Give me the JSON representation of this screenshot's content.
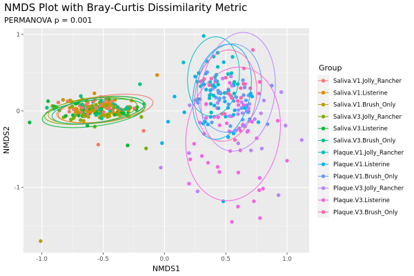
{
  "chart_data": {
    "type": "scatter",
    "title": "NMDS Plot with Bray-Curtis Dissimilarity Metric",
    "subtitle": "PERMANOVA p = 0.001",
    "xlabel": "NMDS1",
    "ylabel": "NMDS2",
    "xlim": [
      -1.15,
      1.18
    ],
    "ylim": [
      -1.85,
      1.08
    ],
    "x_ticks": [
      -1.0,
      -0.5,
      0.0,
      0.5,
      1.0
    ],
    "x_tick_labels": [
      "-1.0",
      "-0.5",
      "0.0",
      "0.5",
      "1.0"
    ],
    "y_ticks": [
      -1,
      0,
      1
    ],
    "y_tick_labels": [
      "-1",
      "0",
      "1"
    ],
    "grid": true,
    "legend": {
      "title": "Group",
      "position": "right"
    },
    "series": [
      {
        "name": "Saliva.V1.Jolly_Rancher",
        "color": "#F8766D",
        "group": "saliva",
        "center": [
          -0.52,
          0.05
        ],
        "spread": [
          0.14,
          0.07
        ],
        "n": 35,
        "ellipse": {
          "cx": -0.48,
          "cy": 0.03,
          "rx": 0.39,
          "ry": 0.17,
          "angle": 8
        }
      },
      {
        "name": "Saliva.V1.Listerine",
        "color": "#DE8C00",
        "group": "saliva",
        "center": [
          -0.5,
          0.04
        ],
        "spread": [
          0.14,
          0.07
        ],
        "n": 35,
        "ellipse": {
          "cx": -0.52,
          "cy": 0.02,
          "rx": 0.36,
          "ry": 0.16,
          "angle": 7
        }
      },
      {
        "name": "Saliva.V1.Brush_Only",
        "color": "#B79F00",
        "group": "saliva",
        "center": [
          -0.56,
          0.02
        ],
        "spread": [
          0.15,
          0.07
        ],
        "n": 35,
        "ellipse": {
          "cx": -0.55,
          "cy": 0.01,
          "rx": 0.4,
          "ry": 0.17,
          "angle": 6
        }
      },
      {
        "name": "Saliva.V3.Jolly_Rancher",
        "color": "#7CAE00",
        "group": "saliva",
        "center": [
          -0.6,
          0.0
        ],
        "spread": [
          0.15,
          0.07
        ],
        "n": 35,
        "ellipse": {
          "cx": -0.6,
          "cy": 0.0,
          "rx": 0.38,
          "ry": 0.16,
          "angle": 7
        }
      },
      {
        "name": "Saliva.V3.Listerine",
        "color": "#00BA38",
        "group": "saliva",
        "center": [
          -0.58,
          0.0
        ],
        "spread": [
          0.15,
          0.07
        ],
        "n": 35,
        "ellipse": {
          "cx": -0.58,
          "cy": -0.03,
          "rx": 0.42,
          "ry": 0.17,
          "angle": 7
        }
      },
      {
        "name": "Saliva.V3.Brush_Only",
        "color": "#00C08B",
        "group": "saliva",
        "center": [
          -0.55,
          0.03
        ],
        "spread": [
          0.14,
          0.07
        ],
        "n": 35,
        "ellipse": {
          "cx": -0.54,
          "cy": 0.01,
          "rx": 0.38,
          "ry": 0.16,
          "angle": 8
        }
      },
      {
        "name": "Plaque.V1.Jolly_Rancher",
        "color": "#00BFC4",
        "group": "plaque",
        "center": [
          0.4,
          0.35
        ],
        "spread": [
          0.13,
          0.2
        ],
        "n": 30,
        "ellipse": {
          "cx": 0.4,
          "cy": 0.45,
          "rx": 0.21,
          "ry": 0.52,
          "angle": -6
        }
      },
      {
        "name": "Plaque.V1.Listerine",
        "color": "#00B4F0",
        "group": "plaque",
        "center": [
          0.48,
          0.1
        ],
        "spread": [
          0.15,
          0.25
        ],
        "n": 30,
        "ellipse": {
          "cx": 0.47,
          "cy": 0.25,
          "rx": 0.23,
          "ry": 0.63,
          "angle": -12
        }
      },
      {
        "name": "Plaque.V1.Brush_Only",
        "color": "#619CFF",
        "group": "plaque",
        "center": [
          0.55,
          0.15
        ],
        "spread": [
          0.15,
          0.22
        ],
        "n": 30,
        "ellipse": {
          "cx": 0.53,
          "cy": 0.3,
          "rx": 0.26,
          "ry": 0.58,
          "angle": -8
        }
      },
      {
        "name": "Plaque.V3.Jolly_Rancher",
        "color": "#B983FF",
        "group": "plaque",
        "center": [
          0.6,
          0.05
        ],
        "spread": [
          0.18,
          0.3
        ],
        "n": 30,
        "ellipse": {
          "cx": 0.6,
          "cy": 0.25,
          "rx": 0.3,
          "ry": 0.78,
          "angle": -8
        }
      },
      {
        "name": "Plaque.V3.Listerine",
        "color": "#F564E3",
        "group": "plaque",
        "center": [
          0.55,
          -0.3
        ],
        "spread": [
          0.17,
          0.35
        ],
        "n": 30,
        "ellipse": {
          "cx": 0.56,
          "cy": -0.3,
          "rx": 0.38,
          "ry": 0.88,
          "angle": -10
        }
      },
      {
        "name": "Plaque.V3.Brush_Only",
        "color": "#FF64B0",
        "group": "plaque",
        "center": [
          0.5,
          0.2
        ],
        "spread": [
          0.15,
          0.22
        ],
        "n": 30,
        "ellipse": {
          "cx": 0.5,
          "cy": 0.2,
          "rx": 0.25,
          "ry": 0.6,
          "angle": -8
        }
      }
    ],
    "outliers": [
      {
        "x": -1.01,
        "y": -1.7,
        "color": "#B79F00"
      },
      {
        "x": -1.1,
        "y": -0.15,
        "color": "#00BA38"
      },
      {
        "x": -0.06,
        "y": 0.47,
        "color": "#DE8C00"
      },
      {
        "x": -0.3,
        "y": -0.45,
        "color": "#00BA38"
      },
      {
        "x": -0.15,
        "y": -0.49,
        "color": "#7CAE00"
      },
      {
        "x": -0.54,
        "y": -0.44,
        "color": "#F8766D"
      },
      {
        "x": -0.17,
        "y": -0.26,
        "color": "#F8766D"
      },
      {
        "x": -0.02,
        "y": -0.42,
        "color": "#00B4F0"
      },
      {
        "x": -0.03,
        "y": -0.74,
        "color": "#B983FF"
      },
      {
        "x": 0.2,
        "y": -0.55,
        "color": "#B983FF"
      },
      {
        "x": 0.25,
        "y": 0.45,
        "color": "#00B4F0"
      },
      {
        "x": 0.32,
        "y": 0.98,
        "color": "#00BFC4"
      },
      {
        "x": 0.48,
        "y": -1.18,
        "color": "#00B4F0"
      },
      {
        "x": 0.55,
        "y": -1.45,
        "color": "#F564E3"
      },
      {
        "x": 0.6,
        "y": -1.25,
        "color": "#F564E3"
      },
      {
        "x": 0.73,
        "y": -1.18,
        "color": "#F564E3"
      },
      {
        "x": 0.78,
        "y": -1.4,
        "color": "#F564E3"
      },
      {
        "x": 0.93,
        "y": -1.1,
        "color": "#B983FF"
      },
      {
        "x": 1.0,
        "y": -0.65,
        "color": "#F564E3"
      },
      {
        "x": 1.12,
        "y": -0.38,
        "color": "#B983FF"
      },
      {
        "x": 0.27,
        "y": -1.05,
        "color": "#B983FF"
      },
      {
        "x": 0.2,
        "y": -0.95,
        "color": "#F564E3"
      },
      {
        "x": -0.2,
        "y": 0.35,
        "color": "#00C08B"
      }
    ]
  }
}
